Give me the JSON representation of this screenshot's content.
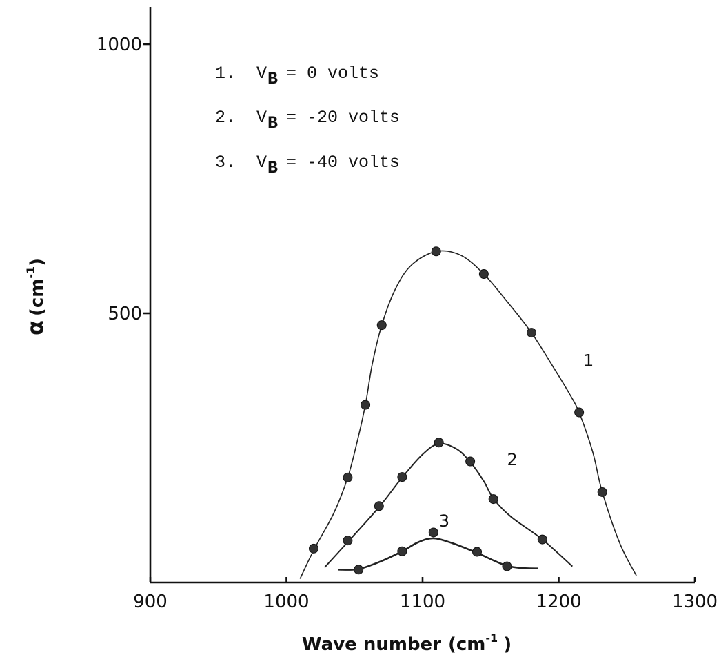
{
  "chart_data": {
    "type": "scatter",
    "x_axis": {
      "label_main": "Wave number",
      "label_unit": "(cm",
      "label_unit_sup": "-1",
      "label_close": ")",
      "ticks": [
        900,
        1000,
        1100,
        1200,
        1300
      ],
      "range": [
        900,
        1300
      ]
    },
    "y_axis": {
      "label_symbol": "α",
      "label_unit": "(cm",
      "label_unit_sup": "-1",
      "label_close": ")",
      "ticks": [
        500,
        1000
      ],
      "range": [
        0,
        1000
      ]
    },
    "legend": [
      {
        "num": "1.",
        "v": "V",
        "sub": "B",
        "rest": "= 0 volts"
      },
      {
        "num": "2.",
        "v": "V",
        "sub": "B",
        "rest": "= -20 volts"
      },
      {
        "num": "3.",
        "v": "V",
        "sub": "B",
        "rest": "= -40 volts"
      }
    ],
    "series": [
      {
        "label": "1",
        "points": [
          [
            1020,
            63
          ],
          [
            1045,
            195
          ],
          [
            1058,
            330
          ],
          [
            1070,
            478
          ],
          [
            1110,
            615
          ],
          [
            1145,
            573
          ],
          [
            1180,
            464
          ],
          [
            1215,
            316
          ],
          [
            1232,
            168
          ]
        ],
        "curve": [
          [
            1010,
            7
          ],
          [
            1020,
            60
          ],
          [
            1035,
            130
          ],
          [
            1045,
            195
          ],
          [
            1052,
            262
          ],
          [
            1058,
            330
          ],
          [
            1063,
            405
          ],
          [
            1070,
            478
          ],
          [
            1080,
            545
          ],
          [
            1092,
            590
          ],
          [
            1110,
            615
          ],
          [
            1128,
            608
          ],
          [
            1145,
            573
          ],
          [
            1162,
            522
          ],
          [
            1180,
            464
          ],
          [
            1197,
            396
          ],
          [
            1208,
            350
          ],
          [
            1215,
            316
          ],
          [
            1225,
            242
          ],
          [
            1232,
            168
          ],
          [
            1245,
            72
          ],
          [
            1257,
            13
          ]
        ]
      },
      {
        "label": "2",
        "points": [
          [
            1045,
            78
          ],
          [
            1068,
            142
          ],
          [
            1085,
            196
          ],
          [
            1112,
            260
          ],
          [
            1135,
            225
          ],
          [
            1152,
            155
          ],
          [
            1188,
            80
          ]
        ],
        "curve": [
          [
            1028,
            28
          ],
          [
            1045,
            75
          ],
          [
            1068,
            140
          ],
          [
            1085,
            195
          ],
          [
            1100,
            238
          ],
          [
            1112,
            258
          ],
          [
            1125,
            248
          ],
          [
            1135,
            224
          ],
          [
            1145,
            188
          ],
          [
            1152,
            156
          ],
          [
            1165,
            122
          ],
          [
            1188,
            80
          ],
          [
            1210,
            30
          ]
        ]
      },
      {
        "label": "3",
        "points": [
          [
            1053,
            24
          ],
          [
            1085,
            58
          ],
          [
            1108,
            93
          ],
          [
            1140,
            57
          ],
          [
            1162,
            30
          ]
        ],
        "curve": [
          [
            1038,
            24
          ],
          [
            1053,
            25
          ],
          [
            1070,
            40
          ],
          [
            1085,
            58
          ],
          [
            1097,
            75
          ],
          [
            1108,
            82
          ],
          [
            1122,
            73
          ],
          [
            1140,
            55
          ],
          [
            1153,
            40
          ],
          [
            1162,
            31
          ],
          [
            1172,
            27
          ],
          [
            1185,
            26
          ]
        ]
      }
    ]
  }
}
